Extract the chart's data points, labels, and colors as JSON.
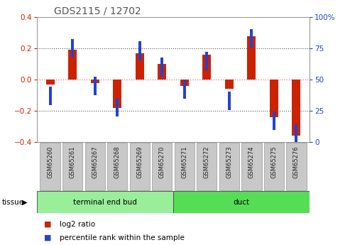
{
  "title": "GDS2115 / 12702",
  "samples": [
    "GSM65260",
    "GSM65261",
    "GSM65267",
    "GSM65268",
    "GSM65269",
    "GSM65270",
    "GSM65271",
    "GSM65272",
    "GSM65273",
    "GSM65274",
    "GSM65275",
    "GSM65276"
  ],
  "log2_ratio": [
    -0.03,
    0.19,
    -0.02,
    -0.18,
    0.17,
    0.1,
    -0.04,
    0.16,
    -0.06,
    0.28,
    -0.24,
    -0.36
  ],
  "percentile": [
    37,
    75,
    45,
    28,
    73,
    60,
    42,
    65,
    33,
    83,
    17,
    7
  ],
  "group1_label": "terminal end bud",
  "group1_color": "#99EE99",
  "group1_count": 6,
  "group2_label": "duct",
  "group2_color": "#55DD55",
  "ylim_left": [
    -0.4,
    0.4
  ],
  "ylim_right": [
    0,
    100
  ],
  "yticks_left": [
    -0.4,
    -0.2,
    0.0,
    0.2,
    0.4
  ],
  "yticks_right": [
    0,
    25,
    50,
    75,
    100
  ],
  "red_color": "#CC2200",
  "blue_color": "#2244CC",
  "dotted_color_mid": "#FF6666",
  "dotted_color_other": "#333333",
  "tissue_label": "tissue",
  "legend_red": "log2 ratio",
  "legend_blue": "percentile rank within the sample",
  "title_color": "#555555",
  "label_bg": "#CCCCCC",
  "label_border": "#AAAAAA"
}
